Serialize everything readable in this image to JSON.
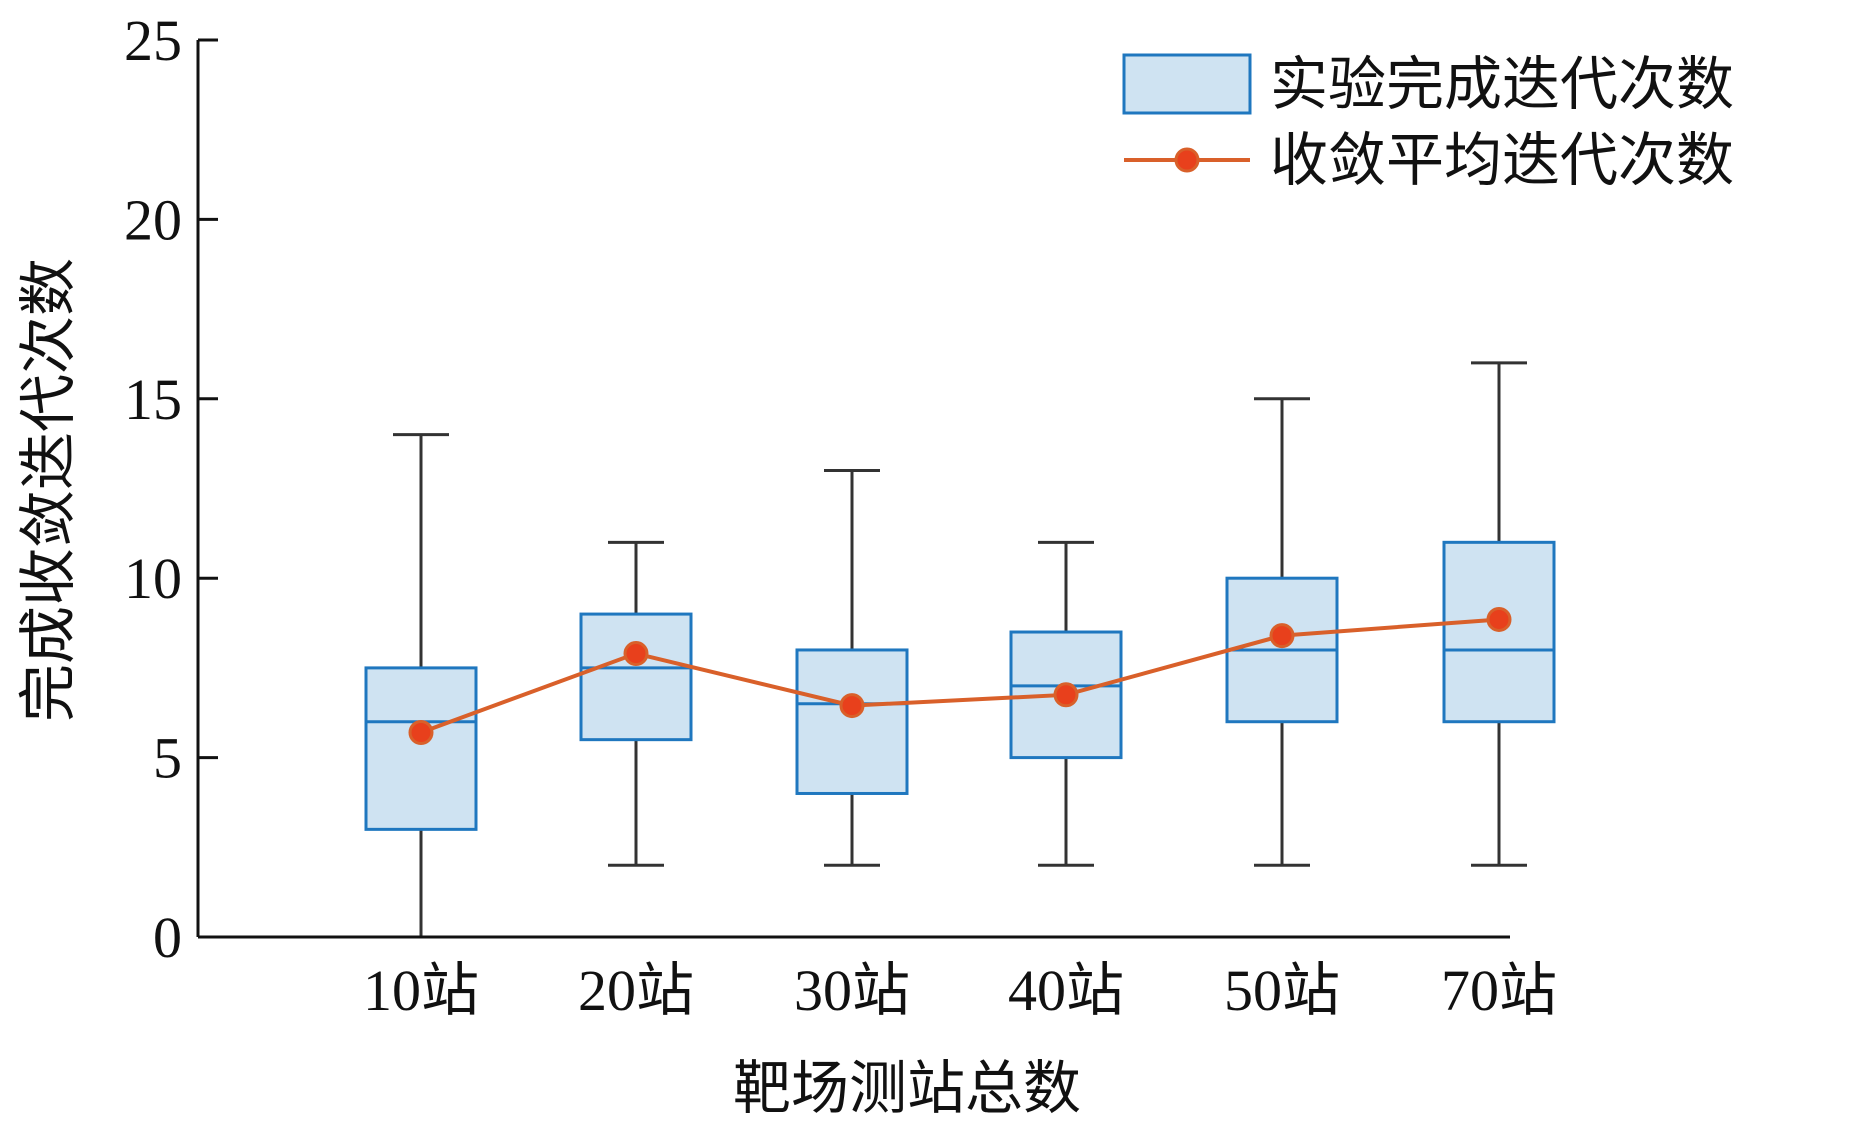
{
  "chart_data": {
    "type": "box",
    "title": "",
    "xlabel": "靶场测站总数",
    "ylabel": "完成收敛迭代次数",
    "ylim": [
      0,
      25
    ],
    "yticks": [
      0,
      5,
      10,
      15,
      20,
      25
    ],
    "categories": [
      "10站",
      "20站",
      "30站",
      "40站",
      "50站",
      "70站"
    ],
    "boxes": [
      {
        "min": 0,
        "q1": 3,
        "median": 6,
        "q3": 7.5,
        "max": 14
      },
      {
        "min": 2,
        "q1": 5.5,
        "median": 7.5,
        "q3": 9,
        "max": 11
      },
      {
        "min": 2,
        "q1": 4,
        "median": 6.5,
        "q3": 8,
        "max": 13
      },
      {
        "min": 2,
        "q1": 5,
        "median": 7,
        "q3": 8.5,
        "max": 11
      },
      {
        "min": 2,
        "q1": 6,
        "median": 8,
        "q3": 10,
        "max": 15
      },
      {
        "min": 2,
        "q1": 6,
        "median": 8,
        "q3": 11,
        "max": 16
      }
    ],
    "mean_series": {
      "name": "收敛平均迭代次数",
      "values": [
        5.7,
        7.9,
        6.45,
        6.75,
        8.4,
        8.85
      ]
    },
    "legend": {
      "placement": "top-right",
      "entries": [
        "实验完成迭代次数",
        "收敛平均迭代次数"
      ]
    },
    "colors": {
      "box_fill": "#cfe3f2",
      "box_stroke": "#1f77bf",
      "whisker": "#333333",
      "mean_line": "#d9602a",
      "mean_marker": "#e8401c",
      "axis": "#111111"
    }
  }
}
